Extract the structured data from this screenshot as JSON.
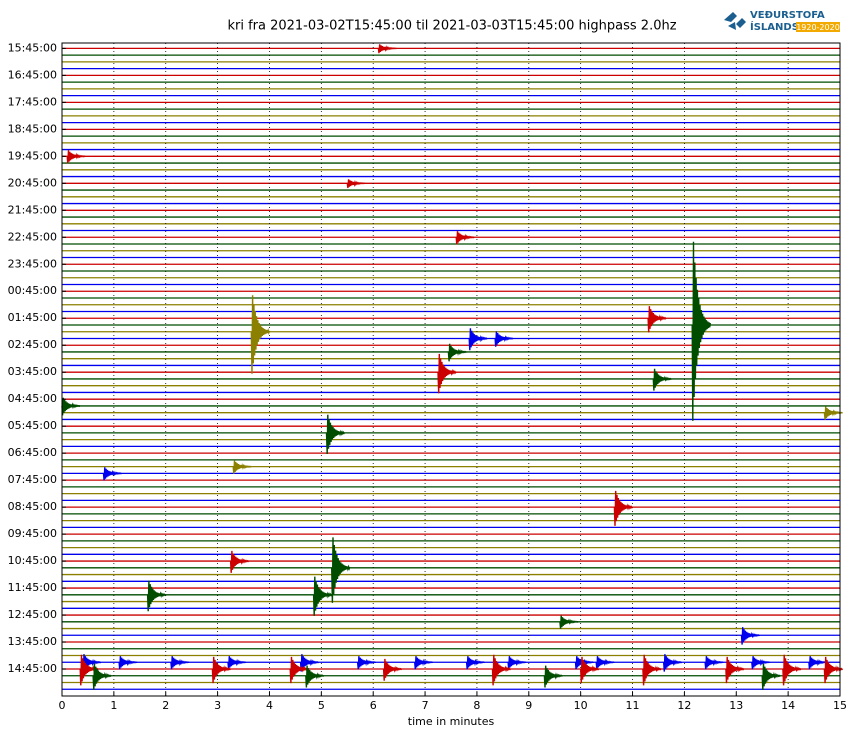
{
  "chart_data": {
    "type": "helicorder",
    "title": "kri fra 2021-03-02T15:45:00 til 2021-03-03T15:45:00 highpass 2.0hz",
    "logo": {
      "name": "VEÐURSTOFA",
      "name2": "ÍSLANDS",
      "years": "1920-2020"
    },
    "x_label": "time in minutes",
    "xlim": [
      0,
      15
    ],
    "xticks": [
      0,
      1,
      2,
      3,
      4,
      5,
      6,
      7,
      8,
      9,
      10,
      11,
      12,
      13,
      14,
      15
    ],
    "ylim": [
      -0.2,
      24
    ],
    "yticks": [
      {
        "value": 0,
        "label": "15:45:00"
      },
      {
        "value": 1,
        "label": "16:45:00"
      },
      {
        "value": 2,
        "label": "17:45:00"
      },
      {
        "value": 3,
        "label": "18:45:00"
      },
      {
        "value": 4,
        "label": "19:45:00"
      },
      {
        "value": 5,
        "label": "20:45:00"
      },
      {
        "value": 6,
        "label": "21:45:00"
      },
      {
        "value": 7,
        "label": "22:45:00"
      },
      {
        "value": 8,
        "label": "23:45:00"
      },
      {
        "value": 9,
        "label": "00:45:00"
      },
      {
        "value": 10,
        "label": "01:45:00"
      },
      {
        "value": 11,
        "label": "02:45:00"
      },
      {
        "value": 12,
        "label": "03:45:00"
      },
      {
        "value": 13,
        "label": "04:45:00"
      },
      {
        "value": 14,
        "label": "05:45:00"
      },
      {
        "value": 15,
        "label": "06:45:00"
      },
      {
        "value": 16,
        "label": "07:45:00"
      },
      {
        "value": 17,
        "label": "08:45:00"
      },
      {
        "value": 18,
        "label": "09:45:00"
      },
      {
        "value": 19,
        "label": "10:45:00"
      },
      {
        "value": 20,
        "label": "11:45:00"
      },
      {
        "value": 21,
        "label": "12:45:00"
      },
      {
        "value": 22,
        "label": "13:45:00"
      },
      {
        "value": 23,
        "label": "14:45:00"
      }
    ],
    "colors": [
      "#cc0000",
      "#004d00",
      "#8b8000",
      "#0000ee"
    ],
    "grid": true,
    "events": {
      "x": [
        6.1,
        0.1,
        3.65,
        12.15,
        11.3,
        7.25,
        7.45,
        7.85,
        8.35,
        5.1,
        10.65,
        5.2,
        4.85,
        3.25,
        1.65,
        3.3,
        0.8,
        13.1,
        0.0,
        14.7,
        5.5,
        9.6,
        7.6,
        11.4,
        0.4,
        1.1,
        2.1,
        3.2,
        4.6,
        5.7,
        6.8,
        7.8,
        8.6,
        9.9,
        10.3,
        11.6,
        12.4,
        13.3,
        14.4,
        0.35,
        2.9,
        4.4,
        6.2,
        8.3,
        10.0,
        11.2,
        12.8,
        13.9,
        14.7,
        0.6,
        4.7,
        9.3,
        13.5
      ],
      "y": [
        0,
        4,
        10.5,
        10.25,
        10,
        12,
        11.25,
        10.75,
        10.75,
        14.25,
        17,
        19.25,
        20.25,
        19,
        20.25,
        15.5,
        15.75,
        21.75,
        13.25,
        13.5,
        5,
        21.25,
        7,
        12.25,
        22.75,
        22.75,
        22.75,
        22.75,
        22.75,
        22.75,
        22.75,
        22.75,
        22.75,
        22.75,
        22.75,
        22.75,
        22.75,
        22.75,
        22.75,
        23,
        23,
        23,
        23,
        23,
        23,
        23,
        23,
        23,
        23,
        23.25,
        23.25,
        23.25,
        23.25
      ],
      "amplitude": [
        0.2,
        0.3,
        1.8,
        4.1,
        0.6,
        0.9,
        0.4,
        0.5,
        0.35,
        0.9,
        0.8,
        1.5,
        0.9,
        0.5,
        0.7,
        0.3,
        0.3,
        0.4,
        0.4,
        0.3,
        0.2,
        0.3,
        0.3,
        0.5,
        0.4,
        0.3,
        0.3,
        0.3,
        0.4,
        0.3,
        0.3,
        0.3,
        0.3,
        0.3,
        0.3,
        0.4,
        0.3,
        0.3,
        0.3,
        0.7,
        0.6,
        0.6,
        0.5,
        0.7,
        0.6,
        0.7,
        0.6,
        0.7,
        0.6,
        0.6,
        0.5,
        0.5,
        0.6
      ]
    }
  }
}
